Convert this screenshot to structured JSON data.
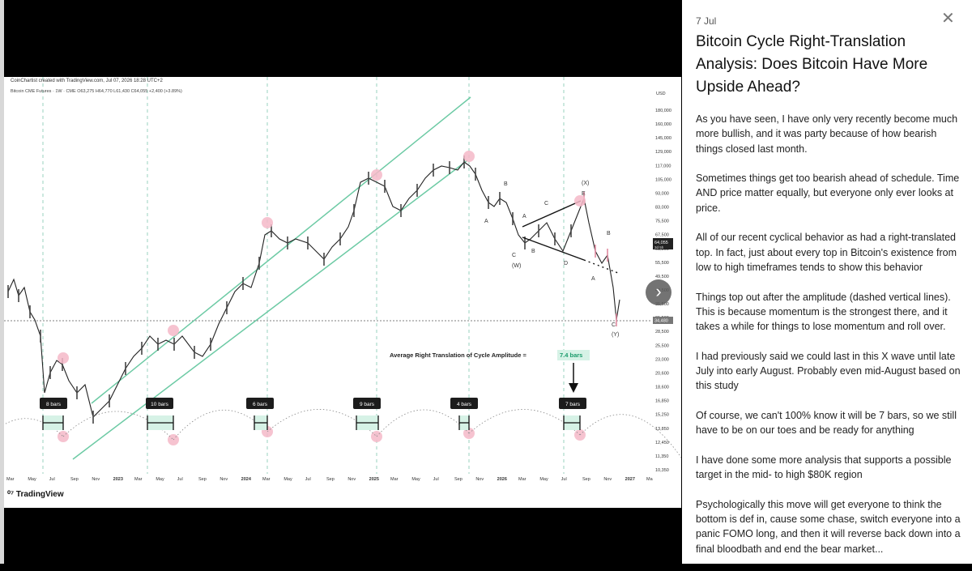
{
  "viewer": {
    "credit": "CoinChartist created with TradingView.com, Jul 07, 2026 18:28 UTC+2",
    "symbol_line": "Bitcoin CME Futures · 1W · CME  O63,275  H64,770  L61,430  C64,055  +2,400 (+3.89%)",
    "logo": "TradingView",
    "next_button_icon": "chevron-right-icon",
    "annotation": "Average Right Translation of Cycle Amplitude =",
    "annotation_value": "7.4 bars",
    "axis_currency": "USD",
    "price_labels": [
      "180,000",
      "160,000",
      "145,000",
      "129,000",
      "117,000",
      "105,000",
      "93,000",
      "83,000",
      "75,500",
      "67,500",
      "61,500",
      "55,500",
      "49,500",
      "40,500",
      "35,500",
      "31,500",
      "28,500",
      "25,500",
      "23,000",
      "20,600",
      "18,600",
      "16,850",
      "15,250",
      "13,850",
      "12,450",
      "11,350",
      "10,350"
    ],
    "current_price": "64,055",
    "current_price_sub": "3d 5h",
    "level_price": "34,480",
    "time_labels": [
      "Mar",
      "May",
      "Jul",
      "Sep",
      "Nov",
      "2023",
      "Mar",
      "May",
      "Jul",
      "Sep",
      "Nov",
      "2024",
      "Mar",
      "May",
      "Jul",
      "Sep",
      "Nov",
      "2025",
      "Mar",
      "May",
      "Jul",
      "Sep",
      "Nov",
      "2026",
      "Mar",
      "May",
      "Jul",
      "Sep",
      "Nov",
      "2027",
      "Ma"
    ],
    "bar_labels": [
      "8 bars",
      "10 bars",
      "6 bars",
      "9 bars",
      "4 bars",
      "7 bars"
    ],
    "wave_labels": [
      "B",
      "A",
      "C",
      "(W)",
      "A",
      "B",
      "C",
      "D",
      "(X)",
      "E",
      "B",
      "A",
      "C",
      "(Y)"
    ]
  },
  "panel": {
    "date": "7 Jul",
    "close_icon": "close-icon",
    "title": "Bitcoin Cycle Right-Translation Analysis: Does Bitcoin Have More Upside Ahead?",
    "paragraphs": [
      "As you have seen, I have only very recently become much more bullish, and it was party because of how bearish things closed last month.",
      "Sometimes things get too bearish ahead of schedule. Time AND price matter equally, but everyone only ever looks at price.",
      "All of our recent cyclical behavior as had a right-translated top. In fact, just about every top in Bitcoin's existence from low to high timeframes tends to show this behavior",
      "Things top out after the amplitude (dashed vertical lines). This is because momentum is the strongest there, and it takes a while for things to lose momentum and roll over.",
      "I had previously said we could last in this X wave until late July into early August. Probably even mid-August based on this study",
      "Of course, we can't 100% know it will be 7 bars, so we still have to be on our toes and be ready for anything",
      "I have done some more analysis that supports a possible target in the mid- to high $80K region",
      "Psychologically this move will get everyone to think the bottom is def in, cause some chase, switch everyone into a panic FOMO long, and then it will reverse back down into a final bloodbath and end the bear market..."
    ]
  }
}
